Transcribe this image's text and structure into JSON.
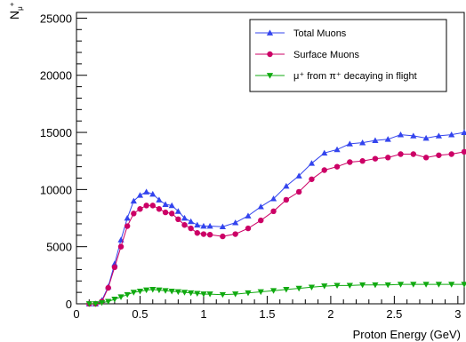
{
  "chart_data": {
    "type": "line",
    "xlabel": "Proton Energy (GeV)",
    "ylabel_main": "N",
    "ylabel_sub": "μ",
    "ylabel_sup": "+",
    "xlim": [
      0,
      3.05
    ],
    "ylim": [
      0,
      25500
    ],
    "xticks": [
      0,
      0.5,
      1,
      1.5,
      2,
      2.5,
      3
    ],
    "xtick_labels": [
      "0",
      "0.5",
      "1",
      "1.5",
      "2",
      "2.5",
      "3"
    ],
    "yticks": [
      0,
      5000,
      10000,
      15000,
      20000,
      25000
    ],
    "ytick_labels": [
      "0",
      "5000",
      "10000",
      "15000",
      "20000",
      "25000"
    ],
    "legend_position": "top-right",
    "series": [
      {
        "name": "Total Muons",
        "color": "#3344ee",
        "marker": "triangle-up",
        "points": [
          [
            0.1,
            0
          ],
          [
            0.15,
            0
          ],
          [
            0.2,
            300
          ],
          [
            0.25,
            1500
          ],
          [
            0.3,
            3500
          ],
          [
            0.35,
            5600
          ],
          [
            0.4,
            7500
          ],
          [
            0.45,
            9000
          ],
          [
            0.5,
            9500
          ],
          [
            0.55,
            9800
          ],
          [
            0.6,
            9600
          ],
          [
            0.65,
            9100
          ],
          [
            0.7,
            8700
          ],
          [
            0.75,
            8600
          ],
          [
            0.8,
            8100
          ],
          [
            0.85,
            7500
          ],
          [
            0.9,
            7200
          ],
          [
            0.95,
            6900
          ],
          [
            1.0,
            6800
          ],
          [
            1.05,
            6800
          ],
          [
            1.15,
            6750
          ],
          [
            1.25,
            7100
          ],
          [
            1.35,
            7700
          ],
          [
            1.45,
            8500
          ],
          [
            1.55,
            9200
          ],
          [
            1.65,
            10300
          ],
          [
            1.75,
            11200
          ],
          [
            1.85,
            12300
          ],
          [
            1.95,
            13200
          ],
          [
            2.05,
            13500
          ],
          [
            2.15,
            14000
          ],
          [
            2.25,
            14100
          ],
          [
            2.35,
            14300
          ],
          [
            2.45,
            14400
          ],
          [
            2.55,
            14800
          ],
          [
            2.65,
            14700
          ],
          [
            2.75,
            14500
          ],
          [
            2.85,
            14700
          ],
          [
            2.95,
            14800
          ],
          [
            3.05,
            15000
          ]
        ]
      },
      {
        "name": "Surface Muons",
        "color": "#cc0066",
        "marker": "circle",
        "points": [
          [
            0.1,
            0
          ],
          [
            0.15,
            0
          ],
          [
            0.2,
            200
          ],
          [
            0.25,
            1400
          ],
          [
            0.3,
            3200
          ],
          [
            0.35,
            5000
          ],
          [
            0.4,
            6800
          ],
          [
            0.45,
            7900
          ],
          [
            0.5,
            8300
          ],
          [
            0.55,
            8600
          ],
          [
            0.6,
            8600
          ],
          [
            0.65,
            8300
          ],
          [
            0.7,
            8000
          ],
          [
            0.75,
            7900
          ],
          [
            0.8,
            7400
          ],
          [
            0.85,
            6900
          ],
          [
            0.9,
            6600
          ],
          [
            0.95,
            6200
          ],
          [
            1.0,
            6100
          ],
          [
            1.05,
            6050
          ],
          [
            1.15,
            5900
          ],
          [
            1.25,
            6100
          ],
          [
            1.35,
            6600
          ],
          [
            1.45,
            7300
          ],
          [
            1.55,
            8100
          ],
          [
            1.65,
            9100
          ],
          [
            1.75,
            9800
          ],
          [
            1.85,
            10900
          ],
          [
            1.95,
            11700
          ],
          [
            2.05,
            12000
          ],
          [
            2.15,
            12400
          ],
          [
            2.25,
            12500
          ],
          [
            2.35,
            12700
          ],
          [
            2.45,
            12800
          ],
          [
            2.55,
            13100
          ],
          [
            2.65,
            13100
          ],
          [
            2.75,
            12800
          ],
          [
            2.85,
            13000
          ],
          [
            2.95,
            13100
          ],
          [
            3.05,
            13300
          ]
        ]
      },
      {
        "name": "μ⁺ from π⁺ decaying in flight",
        "color": "#11aa11",
        "marker": "triangle-down",
        "points": [
          [
            0.1,
            0
          ],
          [
            0.15,
            0
          ],
          [
            0.2,
            100
          ],
          [
            0.25,
            200
          ],
          [
            0.3,
            400
          ],
          [
            0.35,
            600
          ],
          [
            0.4,
            800
          ],
          [
            0.45,
            1000
          ],
          [
            0.5,
            1100
          ],
          [
            0.55,
            1200
          ],
          [
            0.6,
            1250
          ],
          [
            0.65,
            1200
          ],
          [
            0.7,
            1150
          ],
          [
            0.75,
            1100
          ],
          [
            0.8,
            1050
          ],
          [
            0.85,
            1000
          ],
          [
            0.9,
            950
          ],
          [
            0.95,
            900
          ],
          [
            1.0,
            850
          ],
          [
            1.05,
            850
          ],
          [
            1.15,
            800
          ],
          [
            1.25,
            850
          ],
          [
            1.35,
            950
          ],
          [
            1.45,
            1050
          ],
          [
            1.55,
            1150
          ],
          [
            1.65,
            1250
          ],
          [
            1.75,
            1350
          ],
          [
            1.85,
            1450
          ],
          [
            1.95,
            1550
          ],
          [
            2.05,
            1600
          ],
          [
            2.15,
            1600
          ],
          [
            2.25,
            1650
          ],
          [
            2.35,
            1650
          ],
          [
            2.45,
            1650
          ],
          [
            2.55,
            1700
          ],
          [
            2.65,
            1700
          ],
          [
            2.75,
            1700
          ],
          [
            2.85,
            1700
          ],
          [
            2.95,
            1700
          ],
          [
            3.05,
            1700
          ]
        ]
      }
    ]
  }
}
